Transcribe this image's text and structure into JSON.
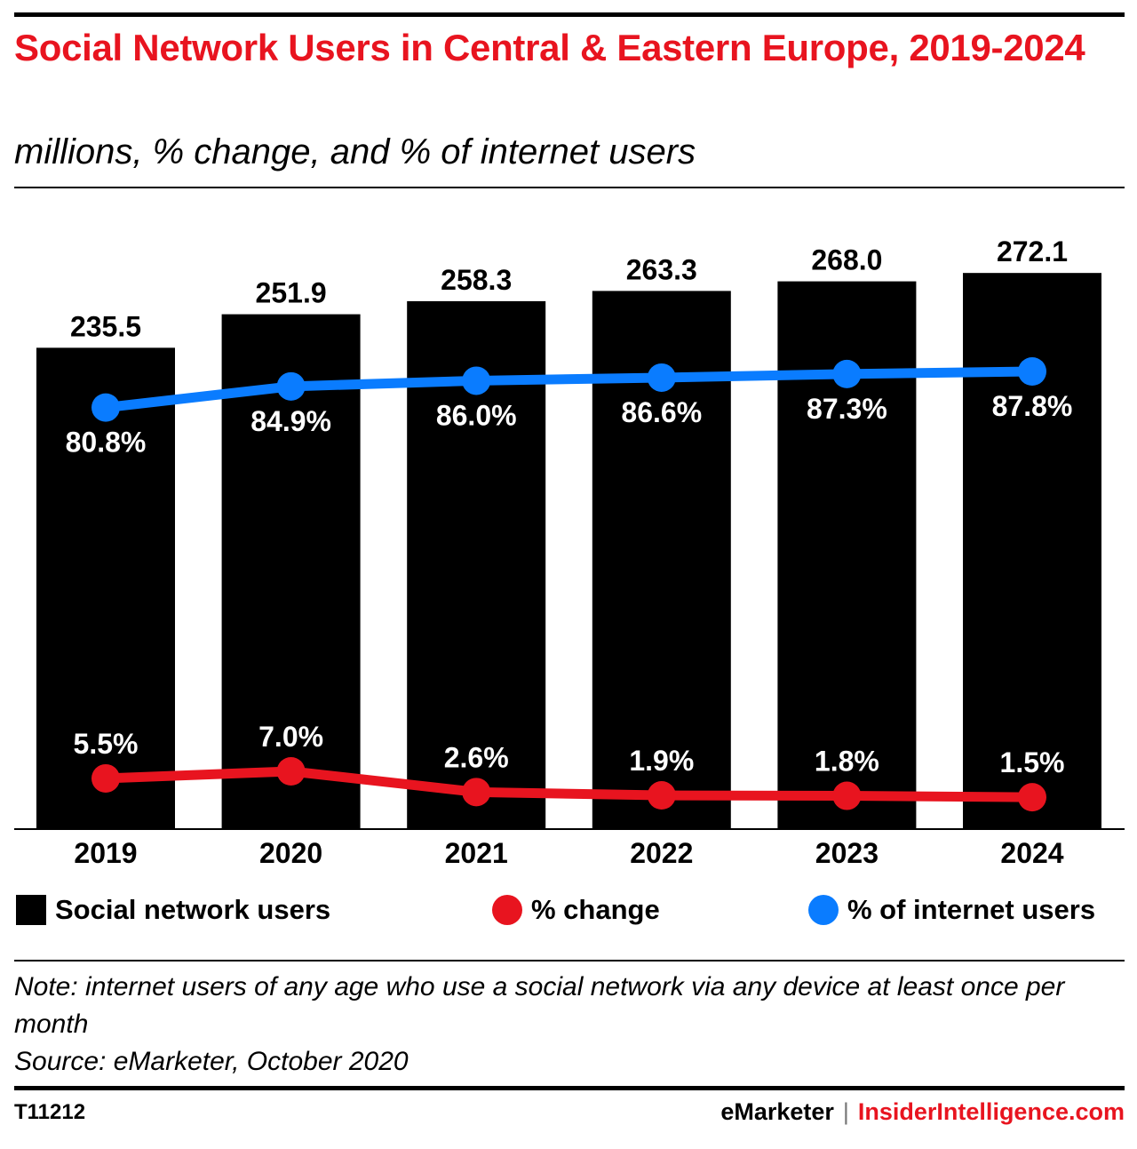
{
  "header": {
    "title": "Social Network Users in Central & Eastern Europe, 2019-2024",
    "subtitle": "millions, % change, and % of internet users"
  },
  "colors": {
    "bars": "#000000",
    "change_line": "#e8141f",
    "internet_line": "#0a7cff",
    "title": "#e8141f"
  },
  "chart_data": {
    "type": "bar",
    "categories": [
      "2019",
      "2020",
      "2021",
      "2022",
      "2023",
      "2024"
    ],
    "series": [
      {
        "name": "Social network users",
        "type": "bar",
        "values": [
          235.5,
          251.9,
          258.3,
          263.3,
          268.0,
          272.1
        ],
        "labels": [
          "235.5",
          "251.9",
          "258.3",
          "263.3",
          "268.0",
          "272.1"
        ]
      },
      {
        "name": "% change",
        "type": "line",
        "values": [
          5.5,
          7.0,
          2.6,
          1.9,
          1.8,
          1.5
        ],
        "labels": [
          "5.5%",
          "7.0%",
          "2.6%",
          "1.9%",
          "1.8%",
          "1.5%"
        ]
      },
      {
        "name": "% of internet users",
        "type": "line",
        "values": [
          80.8,
          84.9,
          86.0,
          86.6,
          87.3,
          87.8
        ],
        "labels": [
          "80.8%",
          "84.9%",
          "86.0%",
          "86.6%",
          "87.3%",
          "87.8%"
        ]
      }
    ],
    "grid": false,
    "legend_position": "bottom"
  },
  "legend": {
    "items": [
      {
        "label": "Social network users"
      },
      {
        "label": "% change"
      },
      {
        "label": "% of internet users"
      }
    ]
  },
  "notes": {
    "note": "Note: internet users of any age who use a social network via any device at least once per month",
    "source": "Source: eMarketer, October 2020"
  },
  "footer": {
    "id": "T11212",
    "brand": "eMarketer",
    "separator": "|",
    "site": "InsiderIntelligence.com"
  }
}
